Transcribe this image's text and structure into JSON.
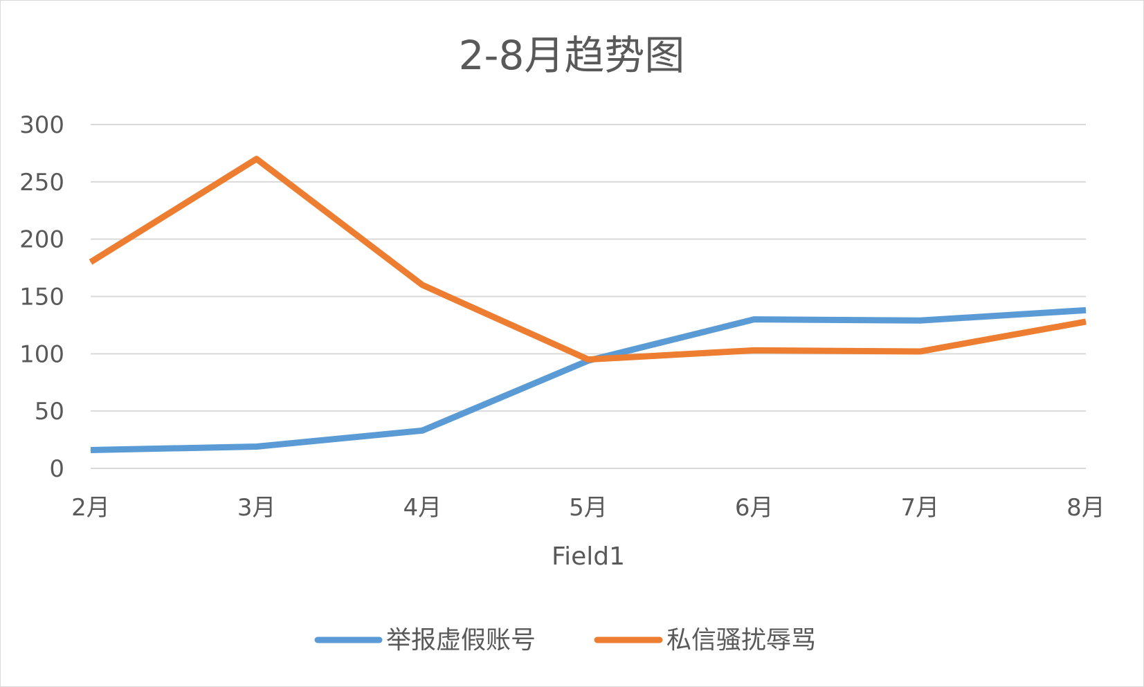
{
  "chart_data": {
    "type": "line",
    "title": "2-8月趋势图",
    "xlabel": "Field1",
    "ylabel": "",
    "categories": [
      "2月",
      "3月",
      "4月",
      "5月",
      "6月",
      "7月",
      "8月"
    ],
    "ylim": [
      0,
      300
    ],
    "yticks": [
      0,
      50,
      100,
      150,
      200,
      250,
      300
    ],
    "grid": true,
    "legend_position": "bottom",
    "series": [
      {
        "name": "举报虚假账号",
        "color": "#5B9BD5",
        "values": [
          16,
          19,
          33,
          94,
          130,
          129,
          138
        ]
      },
      {
        "name": "私信骚扰辱骂",
        "color": "#ED7D31",
        "values": [
          180,
          270,
          160,
          95,
          103,
          102,
          128
        ]
      }
    ]
  }
}
